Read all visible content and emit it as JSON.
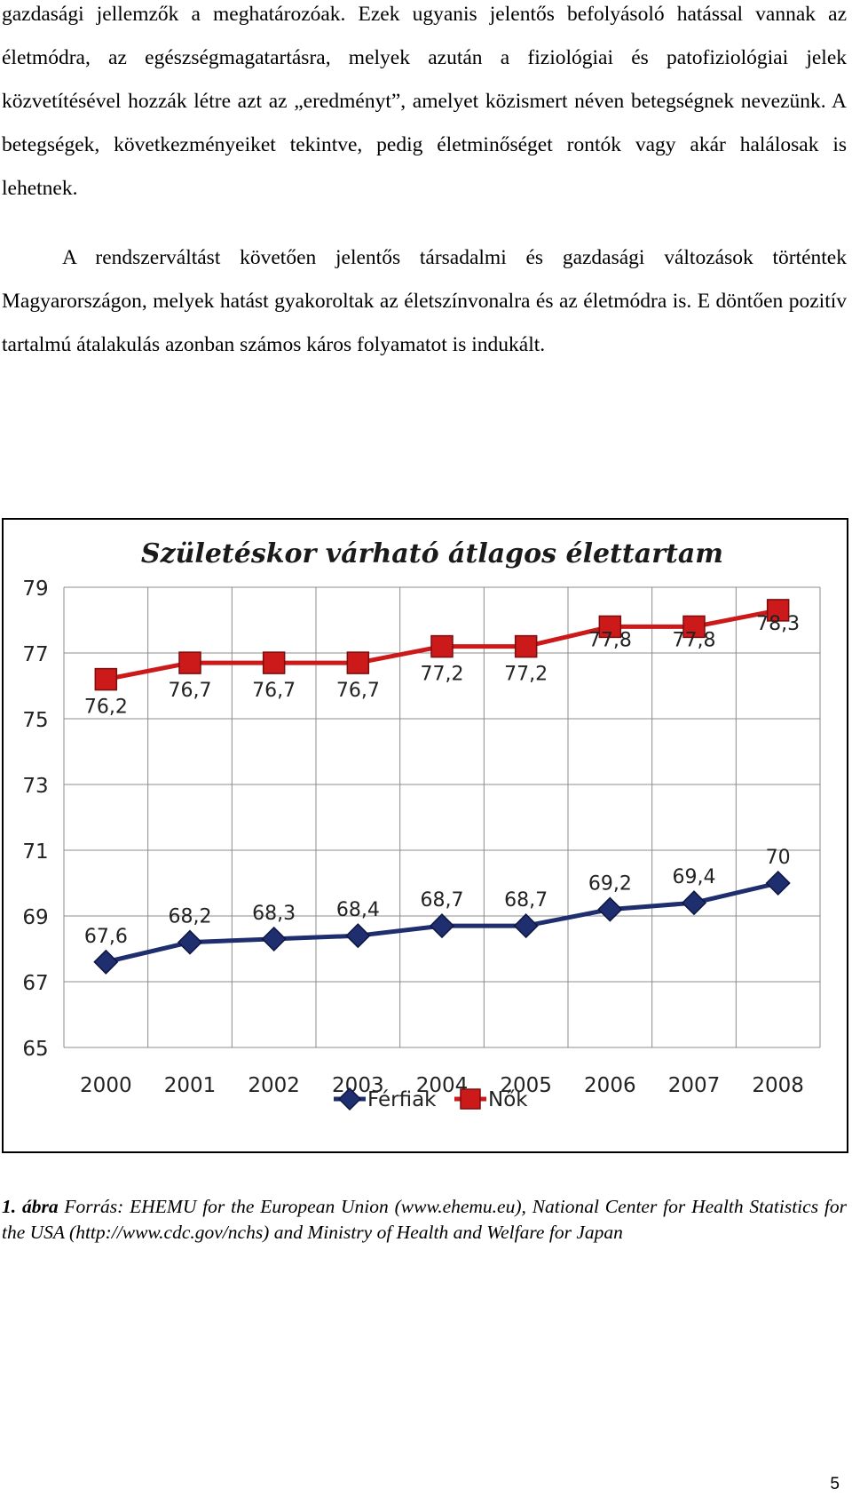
{
  "paragraphs": [
    "gazdasági jellemzők a meghatározóak. Ezek ugyanis jelentős befolyásoló hatással vannak az életmódra, az egészségmagatartásra, melyek azután a fiziológiai és patofiziológiai jelek közvetítésével hozzák létre azt az „eredményt”, amelyet közismert néven betegségnek nevezünk. A betegségek, következményeiket tekintve, pedig életminőséget rontók vagy akár halálosak is lehetnek.",
    "A rendszerváltást követően jelentős társadalmi és gazdasági változások történtek Magyarországon, melyek hatást gyakoroltak az életszínvonalra és az életmódra is. E döntően pozitív tartalmú átalakulás azonban számos káros folyamatot is indukált."
  ],
  "chart_data": {
    "type": "line",
    "title": "Születéskor várható átlagos élettartam",
    "x": [
      "2000",
      "2001",
      "2002",
      "2003",
      "2004",
      "2005",
      "2006",
      "2007",
      "2008"
    ],
    "y_ticks": [
      "79",
      "77",
      "75",
      "73",
      "71",
      "69",
      "67",
      "65"
    ],
    "ylim": [
      65,
      79
    ],
    "grid": true,
    "legend_position": "bottom",
    "series": [
      {
        "name": "Férfiak",
        "values": [
          67.6,
          68.2,
          68.3,
          68.4,
          68.7,
          68.7,
          69.2,
          69.4,
          70
        ],
        "labels": [
          "67,6",
          "68,2",
          "68,3",
          "68,4",
          "68,7",
          "68,7",
          "69,2",
          "69,4",
          "70"
        ],
        "color": "#1f2e6e",
        "marker": "diamond"
      },
      {
        "name": "Nők",
        "values": [
          76.2,
          76.7,
          76.7,
          76.7,
          77.2,
          77.2,
          77.8,
          77.8,
          78.3
        ],
        "labels": [
          "76,2",
          "76,7",
          "76,7",
          "76,7",
          "77,2",
          "77,2",
          "77,8",
          "77,8",
          "78,3"
        ],
        "color": "#cc1a1a",
        "marker": "square"
      }
    ]
  },
  "caption": {
    "figure_label": "1. ábra",
    "text": " Forrás: EHEMU for the European Union (www.ehemu.eu), National Center for Health Statistics for the USA (http://www.cdc.gov/nchs) and Ministry of Health and Welfare for Japan"
  },
  "page_number": "5"
}
